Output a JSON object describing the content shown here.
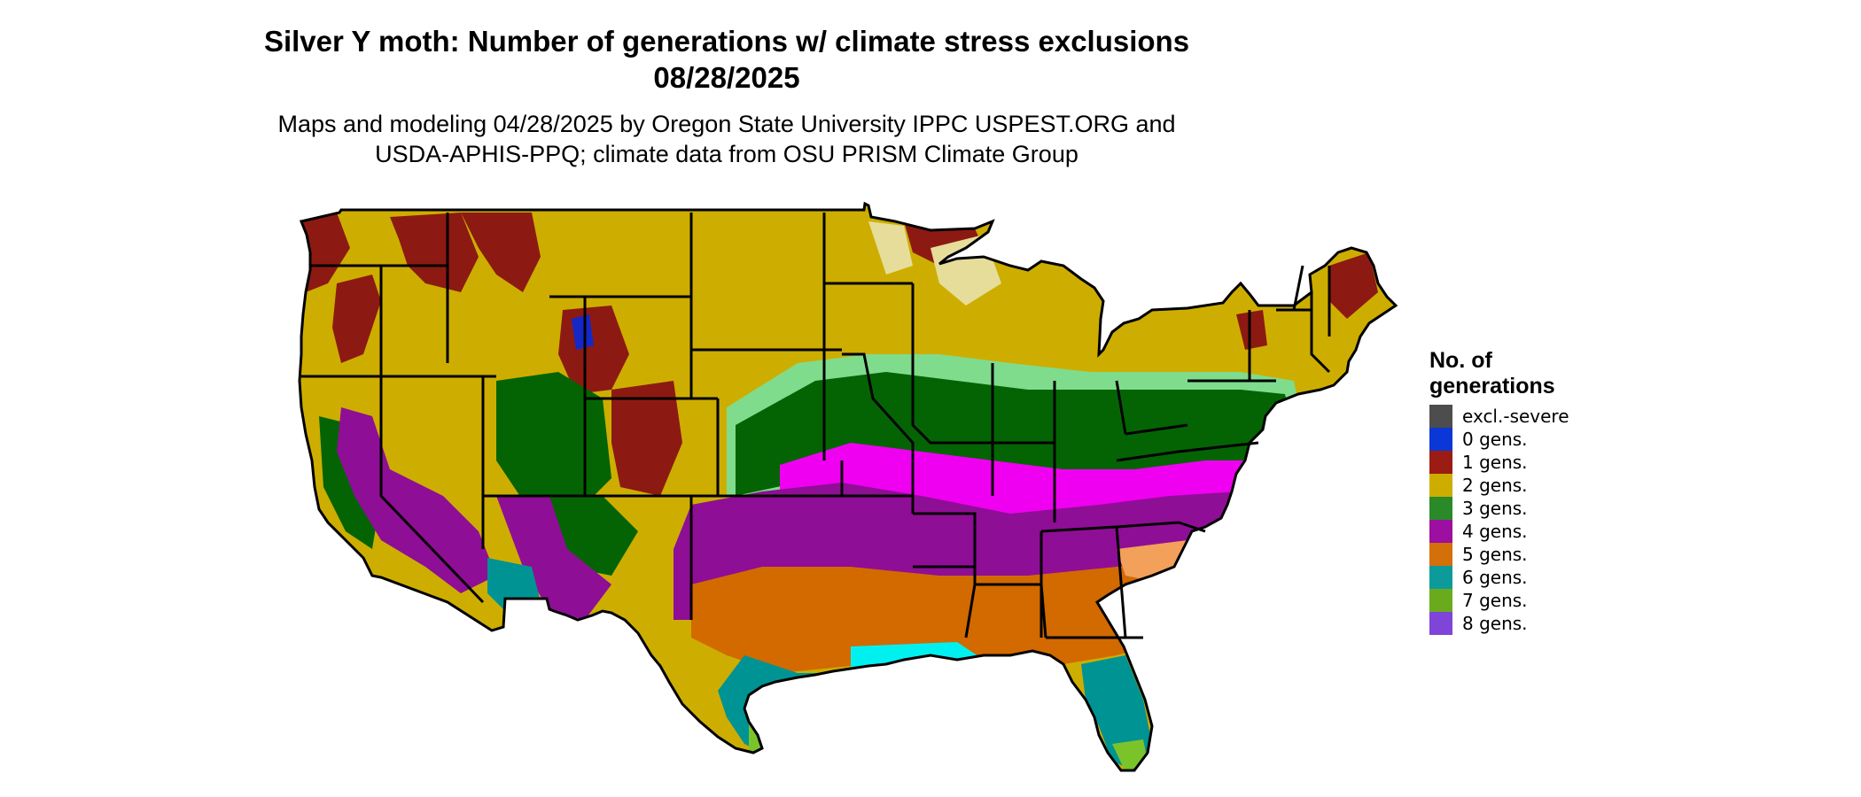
{
  "title": {
    "line1": "Silver Y moth: Number of generations w/ climate stress exclusions",
    "line2": "08/28/2025"
  },
  "subtitle": {
    "line1": "Maps and modeling 04/28/2025 by Oregon State University IPPC USPEST.ORG and",
    "line2": "USDA-APHIS-PPQ; climate data from OSU PRISM Climate Group"
  },
  "legend": {
    "title_line1": "No. of",
    "title_line2": "generations",
    "items": [
      {
        "label": "excl.-severe",
        "color": "#4d4d4d"
      },
      {
        "label": "0 gens.",
        "color": "#0a37d6"
      },
      {
        "label": "1 gens.",
        "color": "#9b1c14"
      },
      {
        "label": "2 gens.",
        "color": "#cdae00"
      },
      {
        "label": "3 gens.",
        "color": "#2a8a2a"
      },
      {
        "label": "4 gens.",
        "color": "#9c0fa0"
      },
      {
        "label": "5 gens.",
        "color": "#d4700a"
      },
      {
        "label": "6 gens.",
        "color": "#0d9a9a"
      },
      {
        "label": "7 gens.",
        "color": "#6aab1e"
      },
      {
        "label": "8 gens.",
        "color": "#7f44d8"
      }
    ]
  },
  "map_colors": {
    "one_gen": "#8c1a12",
    "two_gen": "#cdae00",
    "two_gen_light": "#e6dd9a",
    "three_gen": "#046404",
    "three_gen_light": "#7fdc8c",
    "four_gen": "#8f0e96",
    "four_gen_light": "#f000f0",
    "five_gen": "#d26a00",
    "five_gen_light": "#f2a05a",
    "six_gen": "#009393",
    "six_gen_light": "#00f0f0",
    "seven_gen": "#7ac42a",
    "zero_gen": "#1428c8",
    "border": "#000000"
  }
}
